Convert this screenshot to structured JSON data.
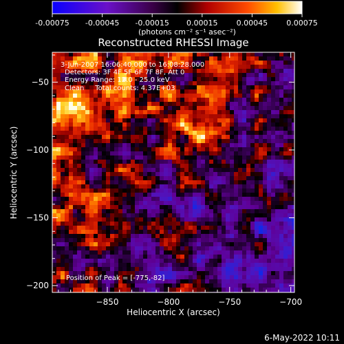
{
  "colorbar": {
    "ticks": [
      "-0.00075",
      "-0.00045",
      "-0.00015",
      "0.00015",
      "0.00045",
      "0.00075"
    ],
    "unit_label": "(photons cm⁻² s⁻¹ asec⁻²)",
    "range": [
      -0.00075,
      0.00075
    ]
  },
  "chart_data": {
    "type": "heatmap",
    "title": "Reconstructed RHESSI Image",
    "xlabel": "Heliocentric X (arcsec)",
    "ylabel": "Heliocentric Y (arcsec)",
    "xlim": [
      -895,
      -697
    ],
    "ylim": [
      -205,
      -28
    ],
    "xticks": [
      -850,
      -800,
      -750,
      -700
    ],
    "yticks": [
      -50,
      -100,
      -150,
      -200
    ],
    "xtick_labels": [
      "−850",
      "−800",
      "−750",
      "−700"
    ],
    "ytick_labels": [
      "−50",
      "−100",
      "−150",
      "−200"
    ],
    "peak": [
      -775,
      -82
    ],
    "annotations": [
      "3-Jun-2007 16:06:40.000 to 16:08:28.000",
      "Detectors: 3F 4F 5F 6F 7F 8F, Att 0",
      "Energy Range: 12.0 - 25.0 keV",
      "Clean     Total counts: 4.37E+03"
    ],
    "peak_label": "Position of Peak = [-775,-82]"
  },
  "footer": {
    "date": "6-May-2022 10:11"
  }
}
